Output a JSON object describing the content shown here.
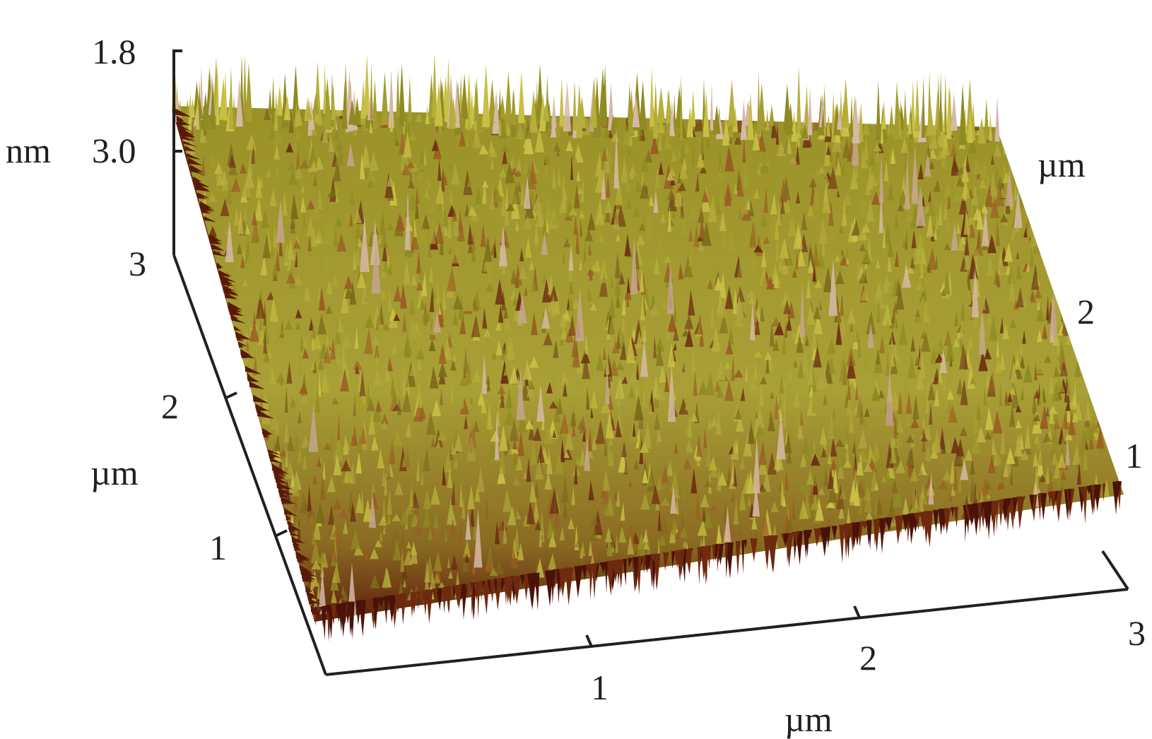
{
  "figure": {
    "kind": "AFM 3D topography render",
    "z_axis": {
      "unit": "nm",
      "ticks": [
        "1.8",
        "3.0"
      ]
    },
    "y_axis": {
      "unit": "µm",
      "ticks": [
        "3",
        "2",
        "1"
      ]
    },
    "x_axis": {
      "unit": "µm",
      "ticks": [
        "1",
        "2",
        "3"
      ]
    },
    "right_axis": {
      "unit": "µm",
      "ticks": [
        "2",
        "1"
      ]
    },
    "colors": {
      "peak_tip": "#d6b8a6",
      "surface_mid": "#a29a2c",
      "surface_light": "#c4bc3c",
      "surface_base": "#6e2a0e",
      "axis": "#231f20"
    }
  }
}
